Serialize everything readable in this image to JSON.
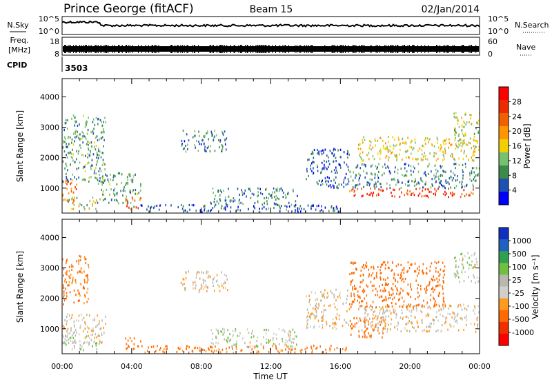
{
  "header": {
    "station": "Prince George (fitACF)",
    "beam": "Beam 15",
    "date": "02/Jan/2014"
  },
  "noise_panel": {
    "left_label": "N.Sky",
    "left_ticks": [
      "10^5",
      "10^0"
    ],
    "right_label": "N.Search",
    "right_ticks": [
      "10^5",
      "10^0"
    ]
  },
  "freq_panel": {
    "left_label_1": "Freq.",
    "left_label_2": "[MHz]",
    "left_ticks": [
      "18",
      "8"
    ],
    "right_label": "Nave",
    "right_ticks": [
      "60",
      "0"
    ]
  },
  "cpid_panel": {
    "label": "CPID",
    "value": "3503"
  },
  "colors": {
    "power_scale": [
      "#0000ff",
      "#1f4fb0",
      "#3d8a4a",
      "#77c070",
      "#f0d000",
      "#ff9500",
      "#f06000",
      "#ee2a00",
      "#ff0000"
    ],
    "velocity_scale": [
      "#1030c0",
      "#2060c0",
      "#30a050",
      "#70c040",
      "#b8b8b0",
      "#d0d0c8",
      "#ff9a20",
      "#ff6a00",
      "#ee3000",
      "#ff0000"
    ]
  },
  "chart_data": [
    {
      "type": "heatmap",
      "name": "power",
      "ylabel": "Slant Range [km]",
      "ylim": [
        180,
        4600
      ],
      "y_ticks": [
        1000,
        2000,
        3000,
        4000
      ],
      "xlim": [
        0,
        24
      ],
      "colorbar": {
        "label": "Power [dB]",
        "tick_values": [
          "4",
          "8",
          "12",
          "16",
          "20",
          "24",
          "28"
        ],
        "range": [
          0,
          32
        ]
      },
      "echo_regions": [
        {
          "t": [
            0.0,
            0.8
          ],
          "r": [
            500,
            1300
          ],
          "p": 22
        },
        {
          "t": [
            0.0,
            2.5
          ],
          "r": [
            1200,
            3400
          ],
          "p": 10
        },
        {
          "t": [
            0.3,
            2.0
          ],
          "r": [
            300,
            700
          ],
          "p": 14
        },
        {
          "t": [
            2.0,
            4.5
          ],
          "r": [
            500,
            1500
          ],
          "p": 10
        },
        {
          "t": [
            3.6,
            4.5
          ],
          "r": [
            300,
            700
          ],
          "p": 24
        },
        {
          "t": [
            6.8,
            9.5
          ],
          "r": [
            2200,
            2900
          ],
          "p": 8
        },
        {
          "t": [
            8.5,
            13.5
          ],
          "r": [
            450,
            1000
          ],
          "p": 8
        },
        {
          "t": [
            4.0,
            16.0
          ],
          "r": [
            200,
            450
          ],
          "p": 6
        },
        {
          "t": [
            14.0,
            16.5
          ],
          "r": [
            1000,
            2300
          ],
          "p": 6
        },
        {
          "t": [
            16.5,
            24.0
          ],
          "r": [
            700,
            1000
          ],
          "p": 26
        },
        {
          "t": [
            16.5,
            24.0
          ],
          "r": [
            1000,
            1800
          ],
          "p": 8
        },
        {
          "t": [
            17.0,
            24.0
          ],
          "r": [
            1900,
            2700
          ],
          "p": 16
        },
        {
          "t": [
            22.5,
            24.0
          ],
          "r": [
            2500,
            3500
          ],
          "p": 14
        }
      ]
    },
    {
      "type": "heatmap",
      "name": "velocity",
      "ylabel": "Slant Range [km]",
      "ylim": [
        180,
        4600
      ],
      "y_ticks": [
        1000,
        2000,
        3000,
        4000
      ],
      "xlabel": "Time UT",
      "x_ticks": [
        "00:00",
        "04:00",
        "08:00",
        "12:00",
        "16:00",
        "20:00",
        "00:00"
      ],
      "xlim": [
        0,
        24
      ],
      "colorbar": {
        "label": "Velocity [m s⁻¹]",
        "tick_values": [
          "1000",
          "500",
          "100",
          "25",
          "-25",
          "-100",
          "-500",
          "-1000"
        ]
      },
      "echo_regions": [
        {
          "t": [
            0.0,
            2.5
          ],
          "r": [
            500,
            1500
          ],
          "v": 0
        },
        {
          "t": [
            0.0,
            1.5
          ],
          "r": [
            1800,
            3400
          ],
          "v": -150
        },
        {
          "t": [
            0.0,
            2.0
          ],
          "r": [
            300,
            800
          ],
          "v": 60
        },
        {
          "t": [
            3.6,
            4.5
          ],
          "r": [
            300,
            700
          ],
          "v": -150
        },
        {
          "t": [
            6.8,
            9.5
          ],
          "r": [
            2200,
            2900
          ],
          "v": 0
        },
        {
          "t": [
            8.5,
            13.5
          ],
          "r": [
            400,
            1000
          ],
          "v": 60
        },
        {
          "t": [
            4.0,
            16.5
          ],
          "r": [
            200,
            450
          ],
          "v": -150
        },
        {
          "t": [
            14.0,
            16.5
          ],
          "r": [
            1000,
            2300
          ],
          "v": 0
        },
        {
          "t": [
            16.5,
            18.5
          ],
          "r": [
            700,
            1400
          ],
          "v": -300
        },
        {
          "t": [
            17.0,
            24.0
          ],
          "r": [
            900,
            1800
          ],
          "v": 0
        },
        {
          "t": [
            16.5,
            22.0
          ],
          "r": [
            1700,
            3200
          ],
          "v": -300
        },
        {
          "t": [
            22.5,
            24.0
          ],
          "r": [
            2500,
            3500
          ],
          "v": 60
        }
      ]
    }
  ]
}
